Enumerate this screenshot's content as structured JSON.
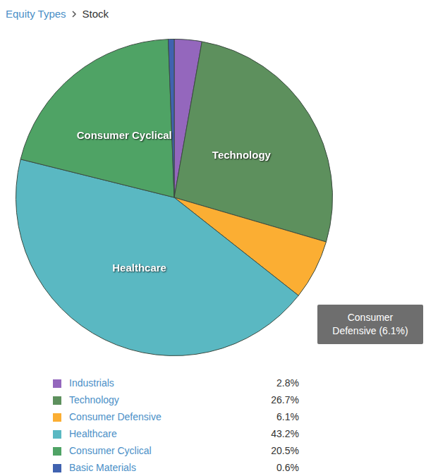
{
  "breadcrumb": [
    "Equity Types",
    "Stock"
  ],
  "chart_data": {
    "type": "pie",
    "categories": [
      "Industrials",
      "Technology",
      "Consumer Defensive",
      "Healthcare",
      "Consumer Cyclical",
      "Basic Materials"
    ],
    "values": [
      2.8,
      26.7,
      6.1,
      43.2,
      20.5,
      0.6
    ],
    "value_labels": [
      "2.8%",
      "26.7%",
      "6.1%",
      "43.2%",
      "20.5%",
      "0.6%"
    ],
    "colors": [
      "#9467bd",
      "#5d905d",
      "#fbae33",
      "#5ab8c2",
      "#4fa365",
      "#4062b0"
    ],
    "annotations": [
      "Consumer Defensive (6.1%)"
    ],
    "legend": "bottom"
  }
}
